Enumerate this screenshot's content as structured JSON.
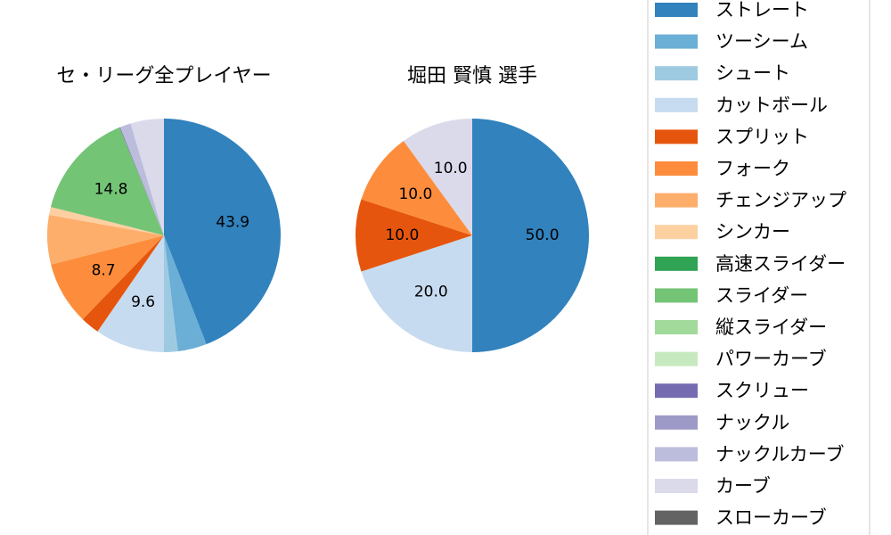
{
  "colors": {
    "ストレート": "#3182bd",
    "ツーシーム": "#6baed6",
    "シュート": "#9ecae1",
    "カットボール": "#c6dbef",
    "スプリット": "#e6550d",
    "フォーク": "#fd8d3c",
    "チェンジアップ": "#fdae6b",
    "シンカー": "#fdd0a2",
    "高速スライダー": "#31a354",
    "スライダー": "#74c476",
    "縦スライダー": "#a1d99b",
    "パワーカーブ": "#c7e9c0",
    "スクリュー": "#756bb1",
    "ナックル": "#9e9ac8",
    "ナックルカーブ": "#bcbddc",
    "カーブ": "#dadaeb",
    "スローカーブ": "#636363"
  },
  "chart_data": [
    {
      "type": "pie",
      "title": "セ・リーグ全プレイヤー",
      "slices": [
        {
          "name": "ストレート",
          "value": 43.9,
          "label": "43.9"
        },
        {
          "name": "ツーシーム",
          "value": 4.0,
          "label": ""
        },
        {
          "name": "シュート",
          "value": 1.9,
          "label": ""
        },
        {
          "name": "カットボール",
          "value": 9.6,
          "label": "9.6"
        },
        {
          "name": "スプリット",
          "value": 2.6,
          "label": ""
        },
        {
          "name": "フォーク",
          "value": 8.7,
          "label": "8.7"
        },
        {
          "name": "チェンジアップ",
          "value": 6.8,
          "label": ""
        },
        {
          "name": "シンカー",
          "value": 1.1,
          "label": ""
        },
        {
          "name": "スライダー",
          "value": 14.8,
          "label": "14.8"
        },
        {
          "name": "スクリュー",
          "value": 0.1,
          "label": ""
        },
        {
          "name": "ナックルカーブ",
          "value": 1.5,
          "label": ""
        },
        {
          "name": "カーブ",
          "value": 4.6,
          "label": ""
        }
      ]
    },
    {
      "type": "pie",
      "title": "堀田 賢慎 選手",
      "slices": [
        {
          "name": "ストレート",
          "value": 50.0,
          "label": "50.0"
        },
        {
          "name": "カットボール",
          "value": 20.0,
          "label": "20.0"
        },
        {
          "name": "スプリット",
          "value": 10.0,
          "label": "10.0"
        },
        {
          "name": "フォーク",
          "value": 10.0,
          "label": "10.0"
        },
        {
          "name": "カーブ",
          "value": 10.0,
          "label": "10.0"
        }
      ]
    }
  ],
  "legend": {
    "placement": "right",
    "entries": [
      "ストレート",
      "ツーシーム",
      "シュート",
      "カットボール",
      "スプリット",
      "フォーク",
      "チェンジアップ",
      "シンカー",
      "高速スライダー",
      "スライダー",
      "縦スライダー",
      "パワーカーブ",
      "スクリュー",
      "ナックル",
      "ナックルカーブ",
      "カーブ",
      "スローカーブ"
    ]
  }
}
